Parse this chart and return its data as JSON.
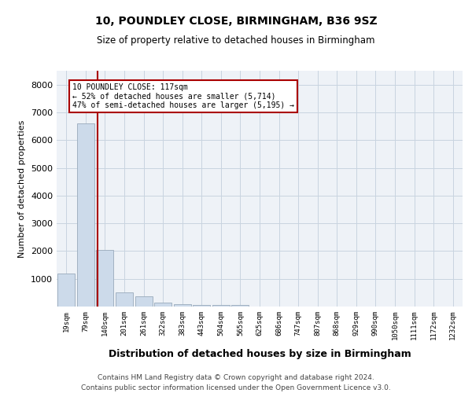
{
  "title": "10, POUNDLEY CLOSE, BIRMINGHAM, B36 9SZ",
  "subtitle": "Size of property relative to detached houses in Birmingham",
  "xlabel": "Distribution of detached houses by size in Birmingham",
  "ylabel": "Number of detached properties",
  "categories": [
    "19sqm",
    "79sqm",
    "140sqm",
    "201sqm",
    "261sqm",
    "322sqm",
    "383sqm",
    "443sqm",
    "504sqm",
    "565sqm",
    "625sqm",
    "686sqm",
    "747sqm",
    "807sqm",
    "868sqm",
    "929sqm",
    "990sqm",
    "1050sqm",
    "1111sqm",
    "1172sqm",
    "1232sqm"
  ],
  "values": [
    1200,
    6600,
    2050,
    500,
    380,
    145,
    80,
    50,
    50,
    70,
    0,
    0,
    0,
    0,
    0,
    0,
    0,
    0,
    0,
    0,
    0
  ],
  "bar_color": "#ccdaea",
  "bar_edge_color": "#99aabb",
  "vline_color": "#aa0000",
  "annotation_text": "10 POUNDLEY CLOSE: 117sqm\n← 52% of detached houses are smaller (5,714)\n47% of semi-detached houses are larger (5,195) →",
  "annotation_box_color": "#ffffff",
  "annotation_box_edge_color": "#aa0000",
  "ylim": [
    0,
    8500
  ],
  "yticks": [
    0,
    1000,
    2000,
    3000,
    4000,
    5000,
    6000,
    7000,
    8000
  ],
  "grid_color": "#c8d4e0",
  "bg_color": "#eef2f7",
  "footer_line1": "Contains HM Land Registry data © Crown copyright and database right 2024.",
  "footer_line2": "Contains public sector information licensed under the Open Government Licence v3.0."
}
